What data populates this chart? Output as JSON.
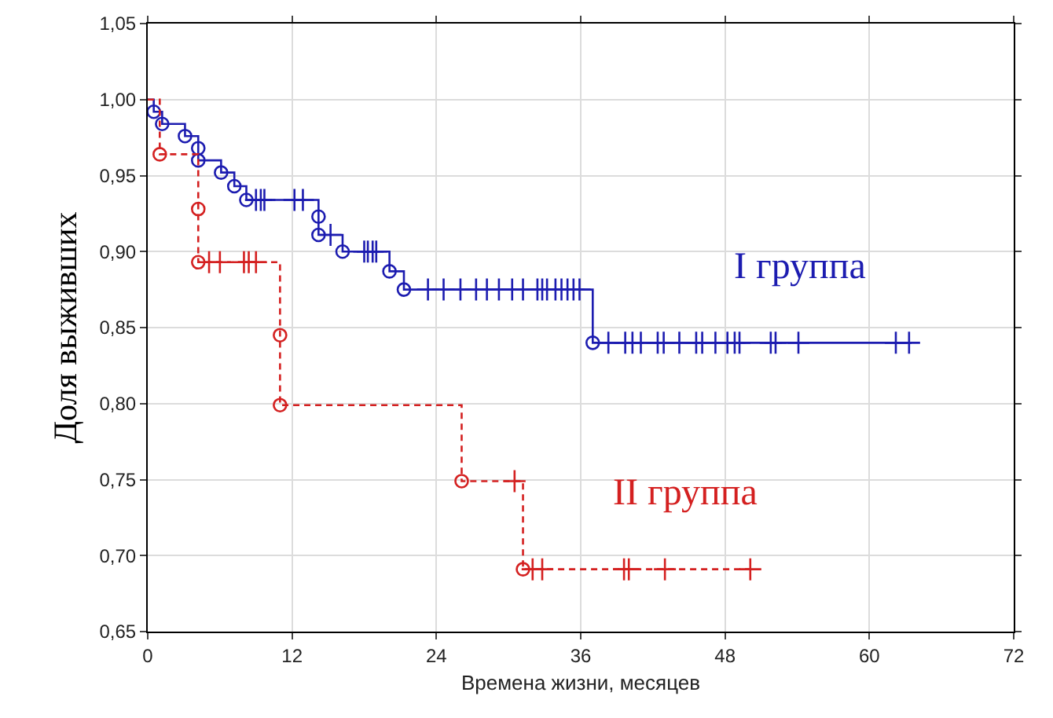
{
  "chart_data": {
    "type": "step",
    "xlabel": "Времена жизни, месяцев",
    "ylabel": "Доля выживших",
    "xlim": [
      0,
      72
    ],
    "xticks": [
      0,
      12,
      24,
      36,
      48,
      60,
      72
    ],
    "ylim": [
      0.65,
      1.05
    ],
    "yticks": [
      {
        "value": 0.65,
        "label": "0,65"
      },
      {
        "value": 0.7,
        "label": "0,70"
      },
      {
        "value": 0.75,
        "label": "0,75"
      },
      {
        "value": 0.8,
        "label": "0,80"
      },
      {
        "value": 0.85,
        "label": "0,85"
      },
      {
        "value": 0.9,
        "label": "0,90"
      },
      {
        "value": 0.95,
        "label": "0,95"
      },
      {
        "value": 1.0,
        "label": "1,00"
      },
      {
        "value": 1.05,
        "label": "1,05"
      }
    ],
    "grid": true,
    "legend": false,
    "series": [
      {
        "name": "I группа",
        "color": "#1c1cb0",
        "line_style": "solid",
        "marker": "none",
        "x": [
          0,
          0.5,
          1.2,
          3.1,
          4.2,
          6.1,
          7.2,
          8.2,
          14.2,
          16.2,
          20.1,
          21.3,
          37.0,
          63.5
        ],
        "values": [
          1,
          0.992,
          0.984,
          0.976,
          0.96,
          0.952,
          0.943,
          0.934,
          0.911,
          0.9,
          0.887,
          0.875,
          0.84,
          0.84
        ]
      },
      {
        "type": "scatter",
        "color": "#1c1cb0",
        "marker": "circle",
        "x": [
          0.5,
          1.2,
          3.1,
          4.2,
          4.2,
          6.1,
          7.2,
          8.2,
          14.2,
          14.2,
          16.2,
          20.1,
          21.3,
          37.0
        ],
        "values": [
          0.992,
          0.984,
          0.976,
          0.968,
          0.96,
          0.952,
          0.943,
          0.934,
          0.923,
          0.911,
          0.9,
          0.887,
          0.875,
          0.84
        ]
      },
      {
        "type": "scatter",
        "color": "#1c1cb0",
        "marker": "cross",
        "x": [
          9.0,
          9.4,
          9.7,
          12.2,
          12.9,
          15.2,
          18.0,
          18.3,
          18.7,
          19.0,
          23.3,
          24.6,
          26.0,
          27.3,
          28.2,
          29.2,
          30.3,
          31.2,
          32.4,
          32.8,
          33.2,
          33.9,
          34.4,
          34.9,
          35.4,
          35.9,
          38.3,
          39.7,
          40.3,
          41.0,
          42.4,
          42.9,
          44.2,
          45.6,
          46.1,
          47.2,
          48.2,
          48.8,
          49.2,
          51.8,
          52.2,
          54.1,
          62.2,
          63.3
        ],
        "values": [
          0.934,
          0.934,
          0.934,
          0.934,
          0.934,
          0.911,
          0.9,
          0.9,
          0.9,
          0.9,
          0.875,
          0.875,
          0.875,
          0.875,
          0.875,
          0.875,
          0.875,
          0.875,
          0.875,
          0.875,
          0.875,
          0.875,
          0.875,
          0.875,
          0.875,
          0.875,
          0.84,
          0.84,
          0.84,
          0.84,
          0.84,
          0.84,
          0.84,
          0.84,
          0.84,
          0.84,
          0.84,
          0.84,
          0.84,
          0.84,
          0.84,
          0.84,
          0.84,
          0.84
        ]
      },
      {
        "name": "II группа",
        "color": "#d42020",
        "line_style": "dashed",
        "marker": "none",
        "x": [
          0,
          1.0,
          4.2,
          11.0,
          26.1,
          31.2,
          50.1
        ],
        "values": [
          1,
          0.964,
          0.893,
          0.799,
          0.749,
          0.691,
          0.691
        ]
      },
      {
        "type": "scatter",
        "color": "#d42020",
        "marker": "circle",
        "x": [
          1.0,
          4.2,
          4.2,
          11.0,
          11.0,
          26.1,
          31.2
        ],
        "values": [
          0.964,
          0.928,
          0.893,
          0.845,
          0.799,
          0.749,
          0.691
        ]
      },
      {
        "type": "scatter",
        "color": "#d42020",
        "marker": "cross",
        "x": [
          5.1,
          6.0,
          8.0,
          8.4,
          9.0,
          30.5,
          32.0,
          32.8,
          39.6,
          40.0,
          43.0,
          50.1
        ],
        "values": [
          0.893,
          0.893,
          0.893,
          0.893,
          0.893,
          0.749,
          0.691,
          0.691,
          0.691,
          0.691,
          0.691,
          0.691
        ]
      }
    ]
  }
}
